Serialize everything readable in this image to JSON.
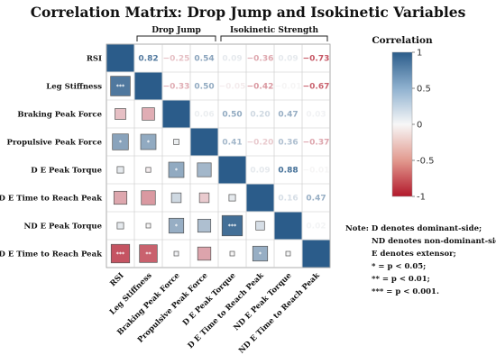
{
  "chart_data": {
    "type": "heatmap",
    "title": "Correlation Matrix: Drop Jump and Isokinetic Variables",
    "groups": [
      {
        "label": "Drop Jump",
        "from": 1,
        "to": 3
      },
      {
        "label": "Isokinetic Strength",
        "from": 4,
        "to": 7
      }
    ],
    "variables": [
      "RSI",
      "Leg Stiffness",
      "Braking Peak Force",
      "Propulsive Peak Force",
      "D E Peak Torque",
      "D E Time to Reach Peak",
      "ND E Peak Torque",
      "ND E Time to Reach Peak"
    ],
    "matrix": [
      [
        1.0,
        0.82,
        -0.25,
        0.54,
        0.09,
        -0.36,
        0.09,
        -0.73
      ],
      [
        0.82,
        1.0,
        -0.33,
        0.5,
        -0.05,
        -0.42,
        -0.01,
        -0.67
      ],
      [
        -0.25,
        -0.33,
        1.0,
        0.06,
        0.5,
        0.2,
        0.47,
        0.03
      ],
      [
        0.54,
        0.5,
        0.06,
        1.0,
        0.41,
        -0.2,
        0.36,
        -0.37
      ],
      [
        0.09,
        -0.05,
        0.5,
        0.41,
        1.0,
        0.09,
        0.88,
        -0.01
      ],
      [
        -0.36,
        -0.42,
        0.2,
        -0.2,
        0.09,
        1.0,
        0.16,
        0.47
      ],
      [
        0.09,
        -0.01,
        0.47,
        0.36,
        0.88,
        0.16,
        1.0,
        0.02
      ],
      [
        -0.73,
        -0.67,
        0.03,
        -0.37,
        -0.01,
        0.47,
        0.02,
        1.0
      ]
    ],
    "upper_labels": [
      [
        "",
        "0.82",
        "−0.25",
        "0.54",
        "0.09",
        "−0.36",
        "0.09",
        "−0.73"
      ],
      [
        "",
        "",
        "−0.33",
        "0.50",
        "−0.05",
        "−0.42",
        "−0.01",
        "−0.67"
      ],
      [
        "",
        "",
        "",
        "0.06",
        "0.50",
        "0.20",
        "0.47",
        "0.03"
      ],
      [
        "",
        "",
        "",
        "",
        "0.41",
        "−0.20",
        "0.36",
        "−0.37"
      ],
      [
        "",
        "",
        "",
        "",
        "",
        "0.09",
        "0.88",
        "−0.01"
      ],
      [
        "",
        "",
        "",
        "",
        "",
        "",
        "0.16",
        "0.47"
      ],
      [
        "",
        "",
        "",
        "",
        "",
        "",
        "",
        "0.02"
      ],
      [
        "",
        "",
        "",
        "",
        "",
        "",
        "",
        ""
      ]
    ],
    "significance_stars": [
      [
        "",
        "",
        "",
        "",
        "",
        "",
        "",
        ""
      ],
      [
        "***",
        "",
        "",
        "",
        "",
        "",
        "",
        ""
      ],
      [
        "",
        "",
        "",
        "",
        "",
        "",
        "",
        ""
      ],
      [
        "*",
        "*",
        "",
        "",
        "",
        "",
        "",
        ""
      ],
      [
        "",
        "",
        "*",
        "",
        "",
        "",
        "",
        ""
      ],
      [
        "",
        "",
        "",
        "",
        "",
        "",
        "",
        ""
      ],
      [
        "",
        "",
        "*",
        "",
        "***",
        "",
        "",
        ""
      ],
      [
        "***",
        "**",
        "",
        "",
        "",
        "*",
        "",
        ""
      ]
    ],
    "colorbar": {
      "title": "Correlation",
      "range": [
        -1,
        1
      ],
      "ticks": [
        "1",
        "0.5",
        "0",
        "-0.5",
        "-1"
      ],
      "tick_values": [
        1,
        0.5,
        0,
        -0.5,
        -1
      ],
      "colors": {
        "positive": "#2b5c8a",
        "neutral": "#f7f7f7",
        "negative": "#b2182b"
      }
    }
  },
  "notes": [
    "Note: D denotes dominant-side;",
    "ND denotes non-dominant-side;",
    "E denotes extensor;",
    "* = p < 0.05;",
    "** = p < 0.01;",
    "*** = p < 0.001."
  ]
}
